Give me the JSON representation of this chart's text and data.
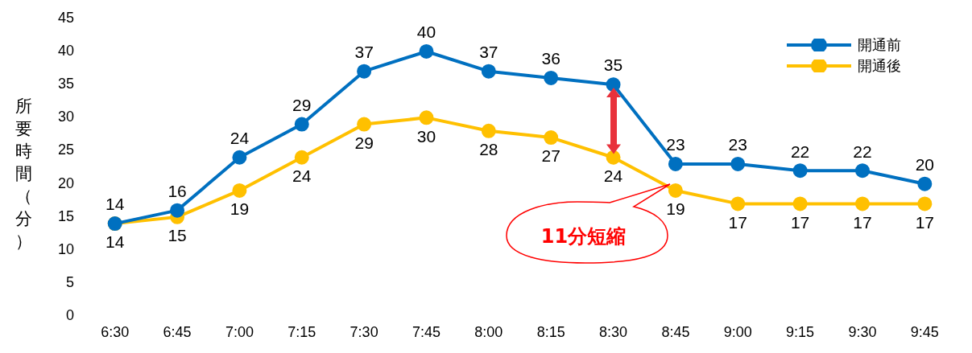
{
  "chart_data": {
    "type": "line",
    "ylabel": "所要時間（分）",
    "categories": [
      "6:30",
      "6:45",
      "7:00",
      "7:15",
      "7:30",
      "7:45",
      "8:00",
      "8:15",
      "8:30",
      "8:45",
      "9:00",
      "9:15",
      "9:30",
      "9:45"
    ],
    "series": [
      {
        "name": "開通前",
        "color": "#0070c0",
        "values": [
          14,
          16,
          24,
          29,
          37,
          40,
          37,
          36,
          35,
          23,
          23,
          22,
          22,
          20
        ]
      },
      {
        "name": "開通後",
        "color": "#ffc000",
        "values": [
          14,
          15,
          19,
          24,
          29,
          30,
          28,
          27,
          24,
          19,
          17,
          17,
          17,
          17
        ]
      }
    ],
    "ylim": [
      0,
      45
    ],
    "yticks": [
      0,
      5,
      10,
      15,
      20,
      25,
      30,
      35,
      40,
      45
    ],
    "grid": false,
    "legend": "top right",
    "marker": "circle",
    "line_style": "solid",
    "data_labels": true,
    "annotations": [
      "11分短縮"
    ]
  }
}
